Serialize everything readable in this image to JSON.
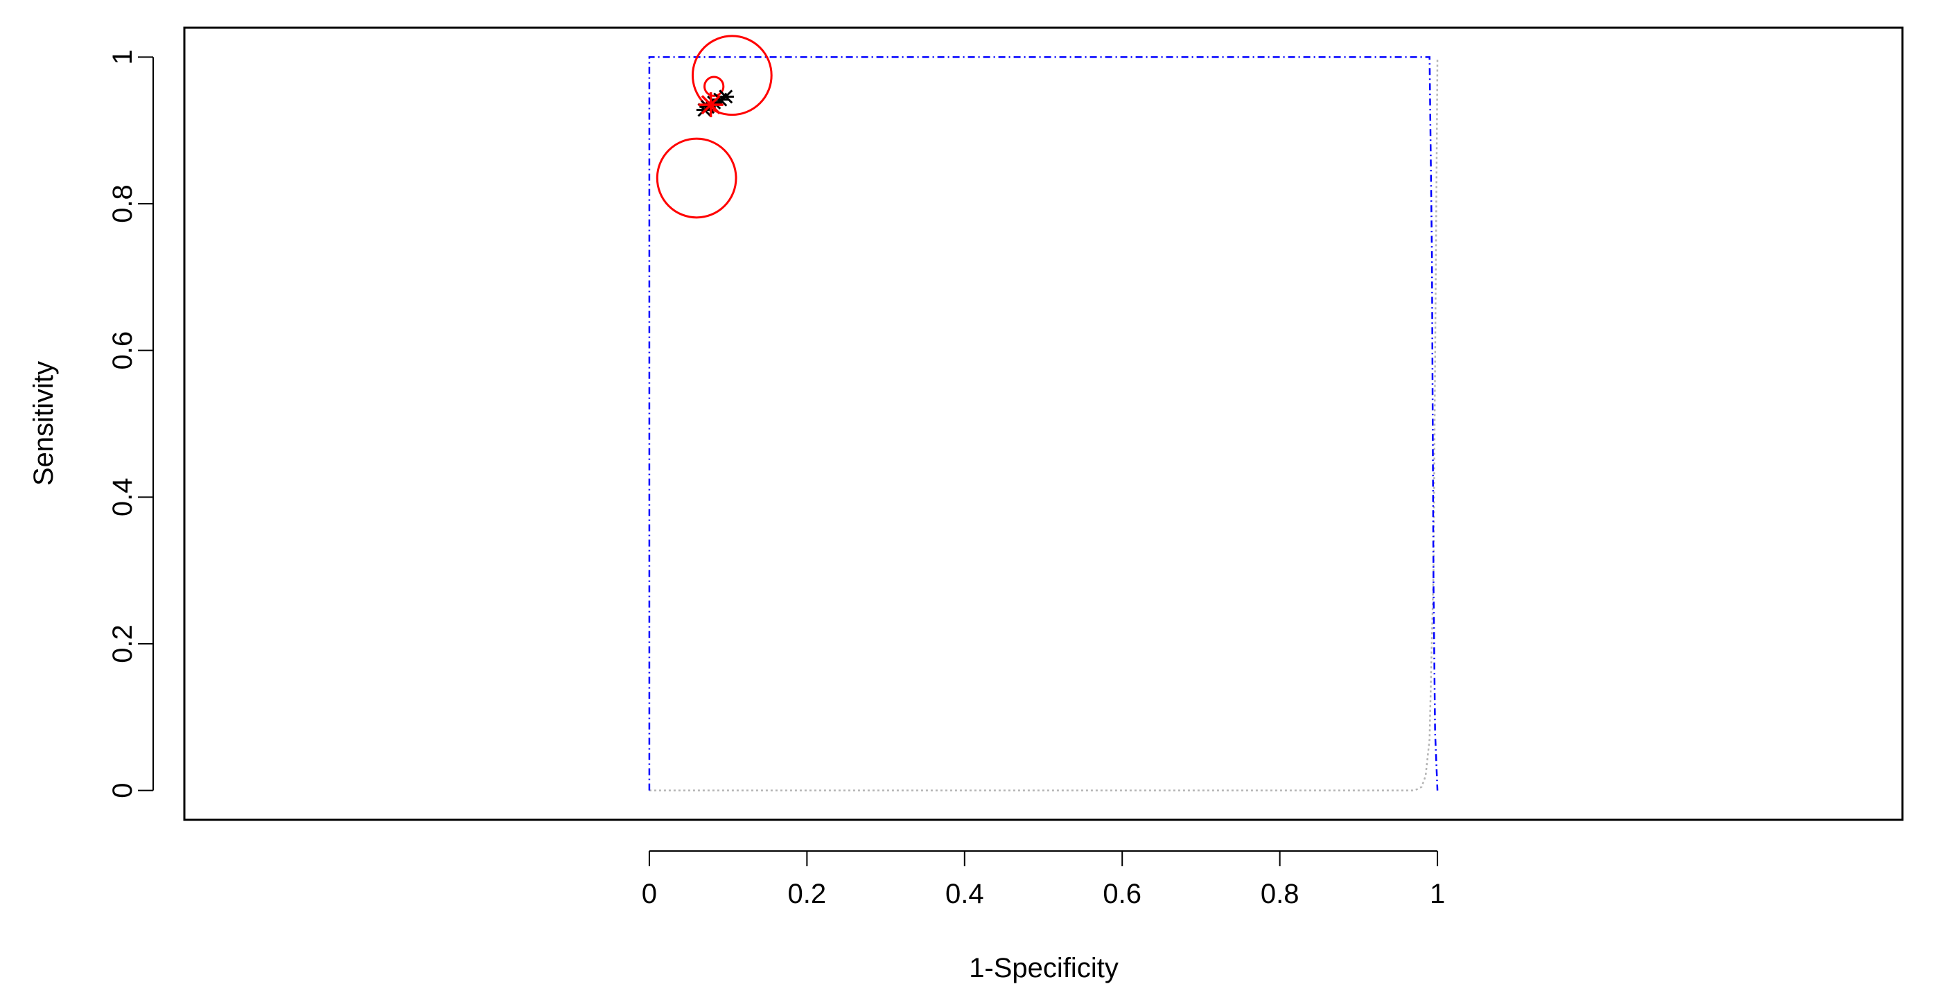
{
  "chart_data": {
    "type": "scatter",
    "title": "",
    "xlabel": "1-Specificity",
    "ylabel": "Sensitivity",
    "xlim": [
      -0.59,
      1.59
    ],
    "ylim": [
      -0.04,
      1.04
    ],
    "x_ticks": [
      {
        "value": 0,
        "label": "0"
      },
      {
        "value": 0.2,
        "label": "0.2"
      },
      {
        "value": 0.4,
        "label": "0.4"
      },
      {
        "value": 0.6,
        "label": "0.6"
      },
      {
        "value": 0.8,
        "label": "0.8"
      },
      {
        "value": 1,
        "label": "1"
      }
    ],
    "y_ticks": [
      {
        "value": 0,
        "label": "0"
      },
      {
        "value": 0.2,
        "label": "0.2"
      },
      {
        "value": 0.4,
        "label": "0.4"
      },
      {
        "value": 0.6,
        "label": "0.6"
      },
      {
        "value": 0.8,
        "label": "0.8"
      },
      {
        "value": 1,
        "label": "1"
      }
    ],
    "grid": false,
    "legend": "none",
    "studies": [
      {
        "x": 0.105,
        "y": 0.975,
        "r": 0.05
      },
      {
        "x": 0.082,
        "y": 0.96,
        "r": 0.012
      },
      {
        "x": 0.06,
        "y": 0.835,
        "r": 0.05
      }
    ],
    "summary_point": {
      "x": 0.078,
      "y": 0.935
    },
    "summary_estimates": [
      {
        "x": 0.07,
        "y": 0.928
      },
      {
        "x": 0.074,
        "y": 0.932
      },
      {
        "x": 0.082,
        "y": 0.938
      },
      {
        "x": 0.09,
        "y": 0.942
      },
      {
        "x": 0.097,
        "y": 0.946
      }
    ],
    "srocx_curve": {
      "x": [
        0,
        0,
        0.01,
        0.05,
        0.1,
        0.2,
        0.3,
        0.4,
        0.5,
        0.6,
        0.7,
        0.8,
        0.9,
        0.95,
        0.98,
        0.99,
        0.993,
        0.995,
        0.997,
        1
      ],
      "y": [
        0,
        1,
        1,
        1,
        1,
        1,
        1,
        1,
        1,
        1,
        1,
        1,
        1,
        1,
        1,
        1,
        0.73,
        0.28,
        0.08,
        0
      ]
    },
    "reference_box": {
      "x": [
        0,
        0,
        0.97,
        0.975,
        0.98,
        0.985,
        0.99,
        0.995,
        1
      ],
      "y": [
        0,
        0,
        0,
        0.002,
        0.005,
        0.02,
        0.07,
        0.3,
        1
      ]
    },
    "colors": {
      "study_circles": "#ff0000",
      "summary_point": "#ff0000",
      "summary_estimates": "#000000",
      "curve": "#0000ff",
      "reference": "#b4b4b4",
      "frame": "#000000"
    }
  }
}
